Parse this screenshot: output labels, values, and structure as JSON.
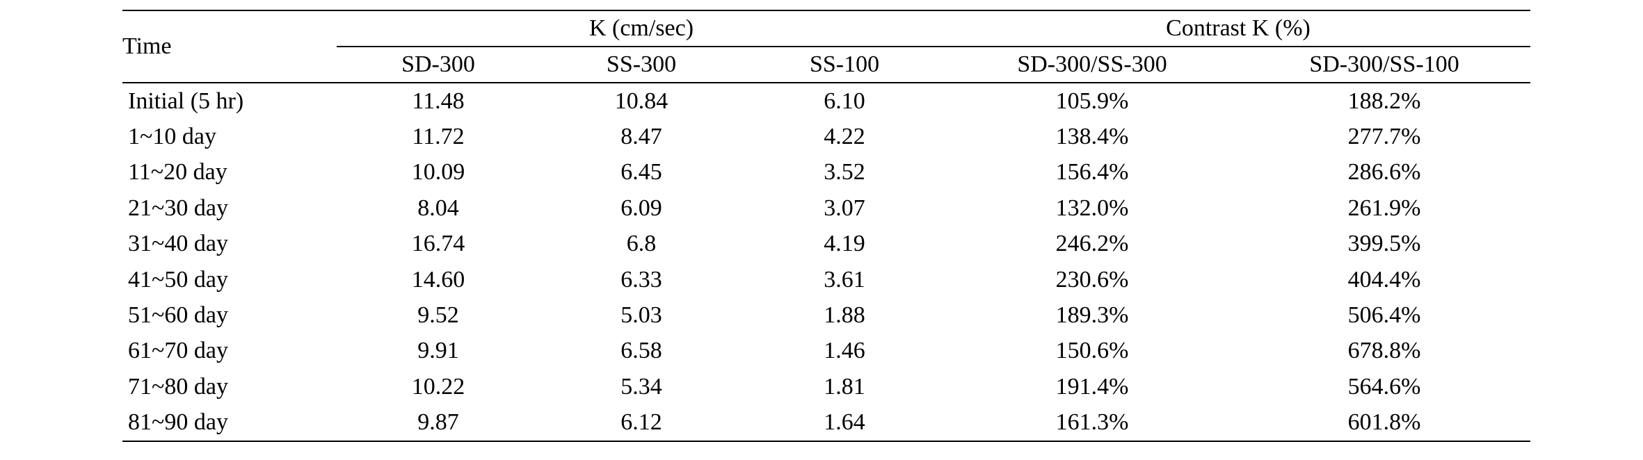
{
  "table": {
    "header": {
      "time": "Time",
      "group_k": "K (cm/sec)",
      "group_contrast": "Contrast K (%)",
      "columns": [
        "SD-300",
        "SS-300",
        "SS-100",
        "SD-300/SS-300",
        "SD-300/SS-100"
      ]
    },
    "rows": [
      {
        "time": "Initial (5 hr)",
        "values": [
          "11.48",
          "10.84",
          "6.10",
          "105.9%",
          "188.2%"
        ]
      },
      {
        "time": "1~10 day",
        "values": [
          "11.72",
          "8.47",
          "4.22",
          "138.4%",
          "277.7%"
        ]
      },
      {
        "time": "11~20 day",
        "values": [
          "10.09",
          "6.45",
          "3.52",
          "156.4%",
          "286.6%"
        ]
      },
      {
        "time": "21~30 day",
        "values": [
          "8.04",
          "6.09",
          "3.07",
          "132.0%",
          "261.9%"
        ]
      },
      {
        "time": "31~40 day",
        "values": [
          "16.74",
          "6.8",
          "4.19",
          "246.2%",
          "399.5%"
        ]
      },
      {
        "time": "41~50 day",
        "values": [
          "14.60",
          "6.33",
          "3.61",
          "230.6%",
          "404.4%"
        ]
      },
      {
        "time": "51~60 day",
        "values": [
          "9.52",
          "5.03",
          "1.88",
          "189.3%",
          "506.4%"
        ]
      },
      {
        "time": "61~70 day",
        "values": [
          "9.91",
          "6.58",
          "1.46",
          "150.6%",
          "678.8%"
        ]
      },
      {
        "time": "71~80 day",
        "values": [
          "10.22",
          "5.34",
          "1.81",
          "191.4%",
          "564.6%"
        ]
      },
      {
        "time": "81~90 day",
        "values": [
          "9.87",
          "6.12",
          "1.64",
          "161.3%",
          "601.8%"
        ]
      }
    ]
  }
}
